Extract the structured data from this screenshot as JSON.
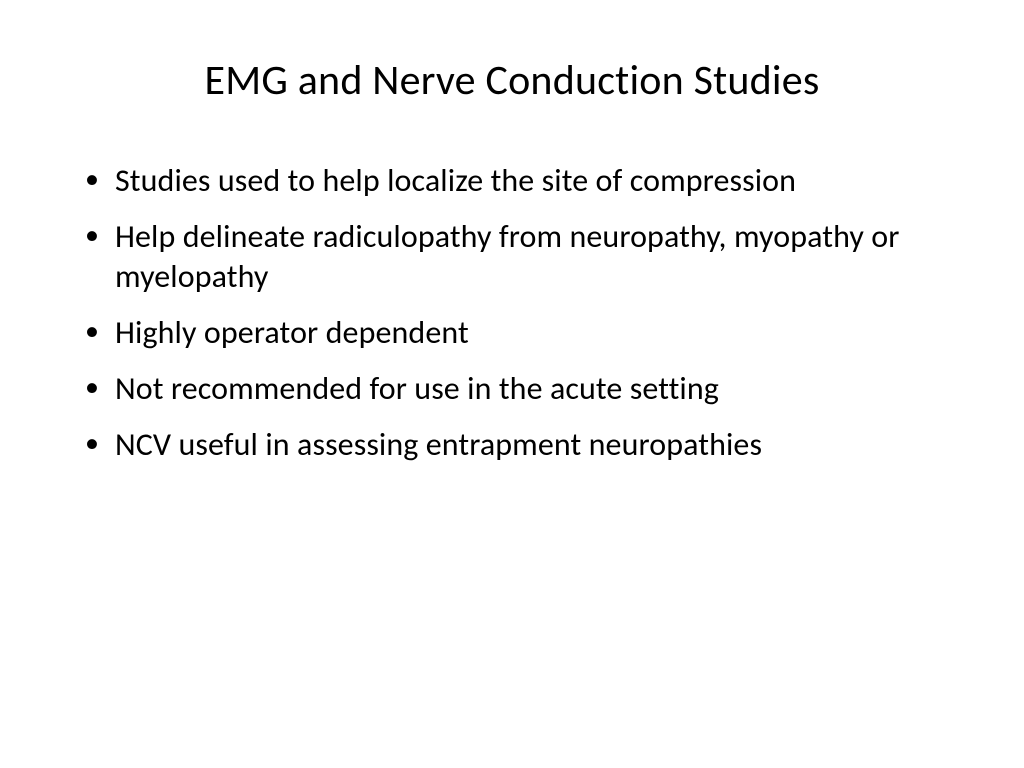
{
  "slide": {
    "title": "EMG and Nerve Conduction Studies",
    "bullets": [
      "Studies used to help localize the site of compression",
      "Help delineate radiculopathy from neuropathy, myopathy or myelopathy",
      "Highly operator dependent",
      "Not recommended for use in the acute setting",
      "NCV useful in assessing entrapment neuropathies"
    ],
    "styling": {
      "background_color": "#ffffff",
      "text_color": "#000000",
      "title_fontsize": 42,
      "body_fontsize": 32,
      "title_fontweight": 400,
      "font_family": "Calibri"
    }
  }
}
